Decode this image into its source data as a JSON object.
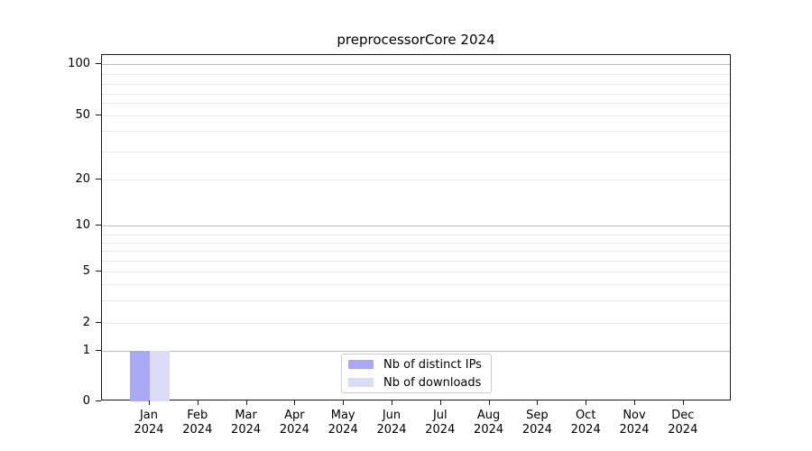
{
  "chart_data": {
    "type": "bar",
    "title": "preprocessorCore 2024",
    "categories": [
      "Jan",
      "Feb",
      "Mar",
      "Apr",
      "May",
      "Jun",
      "Jul",
      "Aug",
      "Sep",
      "Oct",
      "Nov",
      "Dec"
    ],
    "category_year": "2024",
    "series": [
      {
        "name": "Nb of distinct IPs",
        "color": "#a9a9f3",
        "values": [
          1,
          0,
          0,
          0,
          0,
          0,
          0,
          0,
          0,
          0,
          0,
          0
        ]
      },
      {
        "name": "Nb of downloads",
        "color": "#dcdcf7",
        "values": [
          1,
          0,
          0,
          0,
          0,
          0,
          0,
          0,
          0,
          0,
          0,
          0
        ]
      }
    ],
    "yscale": "log-like",
    "ytick_labels": [
      100,
      50,
      20,
      10,
      5,
      2,
      1,
      0
    ],
    "ytick_major": [
      100,
      10,
      1
    ],
    "ytick_minor_unlabeled": [
      90,
      80,
      70,
      60,
      40,
      30,
      9,
      8,
      7,
      6,
      4,
      3
    ],
    "ylim": [
      0,
      110
    ],
    "grid": "both",
    "legend_position": "lower center",
    "axis_color": "#1a1a1a",
    "grid_major_color": "#bdbdbd",
    "grid_minor_color": "#e9e9e9"
  }
}
